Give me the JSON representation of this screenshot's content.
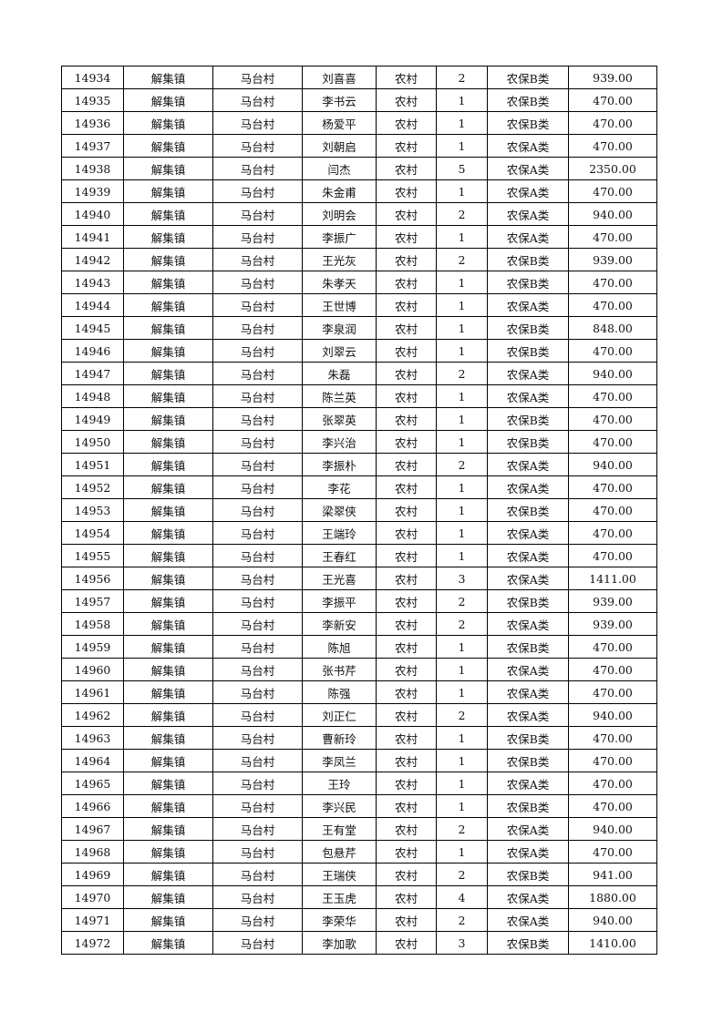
{
  "table": {
    "rows": [
      [
        "14934",
        "解集镇",
        "马台村",
        "刘喜喜",
        "农村",
        "2",
        "农保B类",
        "939.00"
      ],
      [
        "14935",
        "解集镇",
        "马台村",
        "李书云",
        "农村",
        "1",
        "农保B类",
        "470.00"
      ],
      [
        "14936",
        "解集镇",
        "马台村",
        "杨爱平",
        "农村",
        "1",
        "农保B类",
        "470.00"
      ],
      [
        "14937",
        "解集镇",
        "马台村",
        "刘朝启",
        "农村",
        "1",
        "农保A类",
        "470.00"
      ],
      [
        "14938",
        "解集镇",
        "马台村",
        "闫杰",
        "农村",
        "5",
        "农保A类",
        "2350.00"
      ],
      [
        "14939",
        "解集镇",
        "马台村",
        "朱金甫",
        "农村",
        "1",
        "农保A类",
        "470.00"
      ],
      [
        "14940",
        "解集镇",
        "马台村",
        "刘明会",
        "农村",
        "2",
        "农保A类",
        "940.00"
      ],
      [
        "14941",
        "解集镇",
        "马台村",
        "李振广",
        "农村",
        "1",
        "农保A类",
        "470.00"
      ],
      [
        "14942",
        "解集镇",
        "马台村",
        "王光灰",
        "农村",
        "2",
        "农保B类",
        "939.00"
      ],
      [
        "14943",
        "解集镇",
        "马台村",
        "朱孝天",
        "农村",
        "1",
        "农保B类",
        "470.00"
      ],
      [
        "14944",
        "解集镇",
        "马台村",
        "王世博",
        "农村",
        "1",
        "农保A类",
        "470.00"
      ],
      [
        "14945",
        "解集镇",
        "马台村",
        "李泉润",
        "农村",
        "1",
        "农保B类",
        "848.00"
      ],
      [
        "14946",
        "解集镇",
        "马台村",
        "刘翠云",
        "农村",
        "1",
        "农保B类",
        "470.00"
      ],
      [
        "14947",
        "解集镇",
        "马台村",
        "朱磊",
        "农村",
        "2",
        "农保A类",
        "940.00"
      ],
      [
        "14948",
        "解集镇",
        "马台村",
        "陈兰英",
        "农村",
        "1",
        "农保A类",
        "470.00"
      ],
      [
        "14949",
        "解集镇",
        "马台村",
        "张翠英",
        "农村",
        "1",
        "农保B类",
        "470.00"
      ],
      [
        "14950",
        "解集镇",
        "马台村",
        "李兴治",
        "农村",
        "1",
        "农保B类",
        "470.00"
      ],
      [
        "14951",
        "解集镇",
        "马台村",
        "李振朴",
        "农村",
        "2",
        "农保A类",
        "940.00"
      ],
      [
        "14952",
        "解集镇",
        "马台村",
        "李花",
        "农村",
        "1",
        "农保A类",
        "470.00"
      ],
      [
        "14953",
        "解集镇",
        "马台村",
        "梁翠侠",
        "农村",
        "1",
        "农保B类",
        "470.00"
      ],
      [
        "14954",
        "解集镇",
        "马台村",
        "王端玲",
        "农村",
        "1",
        "农保A类",
        "470.00"
      ],
      [
        "14955",
        "解集镇",
        "马台村",
        "王春红",
        "农村",
        "1",
        "农保A类",
        "470.00"
      ],
      [
        "14956",
        "解集镇",
        "马台村",
        "王光喜",
        "农村",
        "3",
        "农保A类",
        "1411.00"
      ],
      [
        "14957",
        "解集镇",
        "马台村",
        "李振平",
        "农村",
        "2",
        "农保B类",
        "939.00"
      ],
      [
        "14958",
        "解集镇",
        "马台村",
        "李新安",
        "农村",
        "2",
        "农保A类",
        "939.00"
      ],
      [
        "14959",
        "解集镇",
        "马台村",
        "陈旭",
        "农村",
        "1",
        "农保B类",
        "470.00"
      ],
      [
        "14960",
        "解集镇",
        "马台村",
        "张书芹",
        "农村",
        "1",
        "农保A类",
        "470.00"
      ],
      [
        "14961",
        "解集镇",
        "马台村",
        "陈强",
        "农村",
        "1",
        "农保A类",
        "470.00"
      ],
      [
        "14962",
        "解集镇",
        "马台村",
        "刘正仁",
        "农村",
        "2",
        "农保A类",
        "940.00"
      ],
      [
        "14963",
        "解集镇",
        "马台村",
        "曹新玲",
        "农村",
        "1",
        "农保B类",
        "470.00"
      ],
      [
        "14964",
        "解集镇",
        "马台村",
        "李凤兰",
        "农村",
        "1",
        "农保B类",
        "470.00"
      ],
      [
        "14965",
        "解集镇",
        "马台村",
        "王玲",
        "农村",
        "1",
        "农保A类",
        "470.00"
      ],
      [
        "14966",
        "解集镇",
        "马台村",
        "李兴民",
        "农村",
        "1",
        "农保B类",
        "470.00"
      ],
      [
        "14967",
        "解集镇",
        "马台村",
        "王有堂",
        "农村",
        "2",
        "农保A类",
        "940.00"
      ],
      [
        "14968",
        "解集镇",
        "马台村",
        "包悬芹",
        "农村",
        "1",
        "农保A类",
        "470.00"
      ],
      [
        "14969",
        "解集镇",
        "马台村",
        "王瑞侠",
        "农村",
        "2",
        "农保B类",
        "941.00"
      ],
      [
        "14970",
        "解集镇",
        "马台村",
        "王玉虎",
        "农村",
        "4",
        "农保A类",
        "1880.00"
      ],
      [
        "14971",
        "解集镇",
        "马台村",
        "李荣华",
        "农村",
        "2",
        "农保A类",
        "940.00"
      ],
      [
        "14972",
        "解集镇",
        "马台村",
        "李加歌",
        "农村",
        "3",
        "农保B类",
        "1410.00"
      ]
    ]
  }
}
